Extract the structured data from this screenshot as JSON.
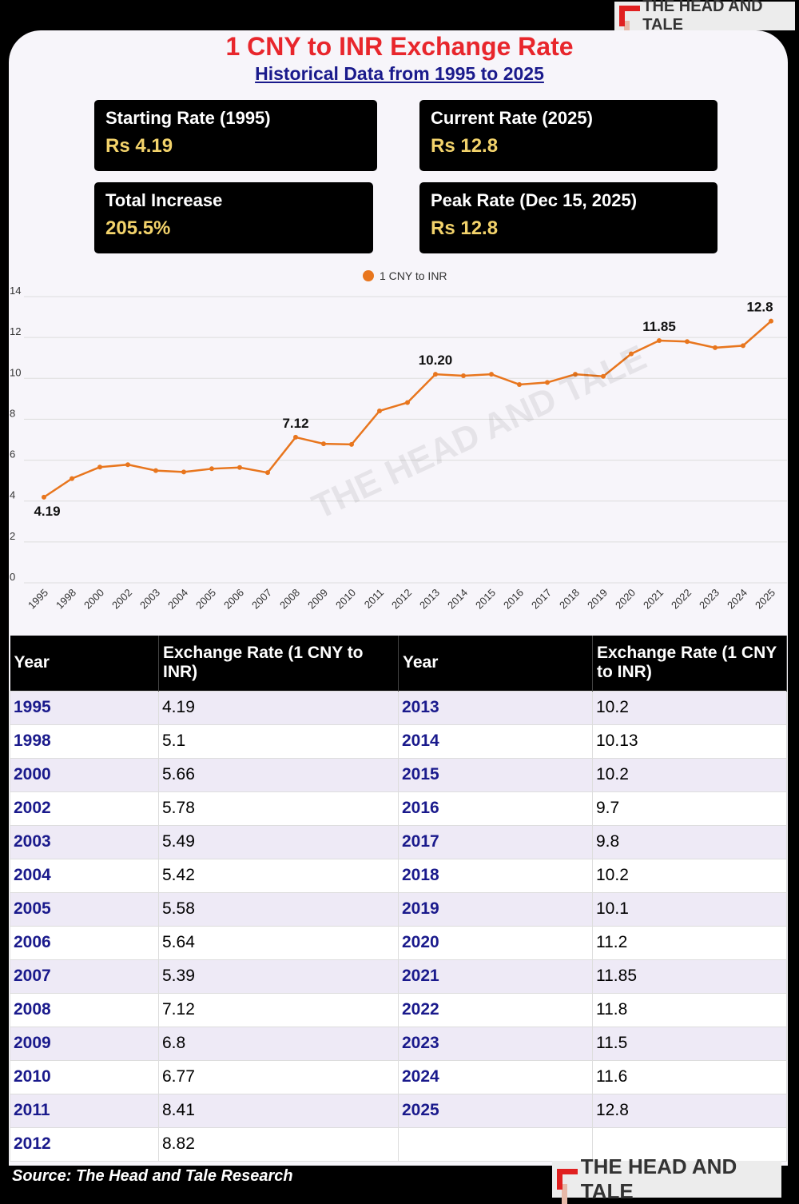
{
  "brand": "THE HEAD AND TALE",
  "title": "1 CNY to INR Exchange Rate",
  "subtitle": "Historical Data from 1995 to 2025",
  "stats": [
    {
      "label": "Starting Rate (1995)",
      "value": "Rs 4.19"
    },
    {
      "label": "Current Rate (2025)",
      "value": "Rs 12.8"
    },
    {
      "label": "Total Increase",
      "value": "205.5%"
    },
    {
      "label": "Peak Rate (Dec 15, 2025)",
      "value": "Rs 12.8"
    }
  ],
  "chart_data": {
    "type": "line",
    "legend": "1 CNY to INR",
    "legend_position": "top-center",
    "color": "#e8761e",
    "x": [
      "1995",
      "1998",
      "2000",
      "2002",
      "2003",
      "2004",
      "2005",
      "2006",
      "2007",
      "2008",
      "2009",
      "2010",
      "2011",
      "2012",
      "2013",
      "2014",
      "2015",
      "2016",
      "2017",
      "2018",
      "2019",
      "2020",
      "2021",
      "2022",
      "2023",
      "2024",
      "2025"
    ],
    "values": [
      4.19,
      5.1,
      5.66,
      5.78,
      5.49,
      5.42,
      5.58,
      5.64,
      5.39,
      7.12,
      6.8,
      6.77,
      8.41,
      8.82,
      10.2,
      10.13,
      10.2,
      9.7,
      9.8,
      10.2,
      10.1,
      11.2,
      11.85,
      11.8,
      11.5,
      11.6,
      12.8
    ],
    "annotations": [
      {
        "index": 0,
        "text": "4.19"
      },
      {
        "index": 9,
        "text": "7.12"
      },
      {
        "index": 14,
        "text": "10.20"
      },
      {
        "index": 22,
        "text": "11.85"
      },
      {
        "index": 26,
        "text": "12.8"
      }
    ],
    "yticks": [
      "0",
      "2",
      "4",
      "6",
      "8",
      "10",
      "12",
      "14"
    ],
    "ylim": [
      0,
      14
    ],
    "grid": true
  },
  "table": {
    "headers": [
      "Year",
      "Exchange Rate (1 CNY to INR)",
      "Year",
      "Exchange Rate (1 CNY to INR)"
    ]
  },
  "source": "Source: The Head and Tale Research"
}
